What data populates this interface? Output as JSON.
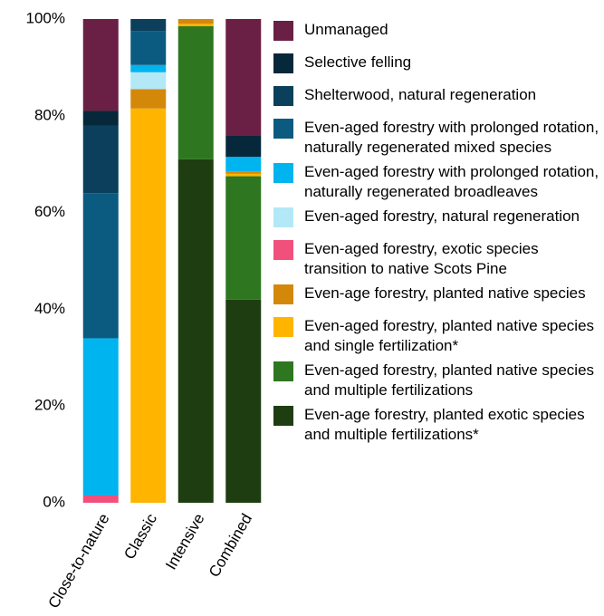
{
  "chart_data": {
    "type": "stacked-bar",
    "categories": [
      "Close-to-nature",
      "Classic",
      "Intensive",
      "Combined"
    ],
    "ylim": [
      0,
      100
    ],
    "yticks": [
      {
        "value": 0,
        "label": "0%"
      },
      {
        "value": 20,
        "label": "20%"
      },
      {
        "value": 40,
        "label": "40%"
      },
      {
        "value": 60,
        "label": "60%"
      },
      {
        "value": 80,
        "label": "80%"
      },
      {
        "value": 100,
        "label": "100%"
      }
    ],
    "grid": false,
    "legend": "right",
    "series": [
      {
        "name": "Even-age forestry, planted exotic species and multiple fertilizations*",
        "color": "#1e3d10",
        "values": [
          0,
          0,
          71,
          42
        ]
      },
      {
        "name": "Even-aged forestry, planted native species and multiple fertilizations",
        "color": "#2e7720",
        "values": [
          0,
          0,
          27.5,
          25.5
        ]
      },
      {
        "name": "Even-aged forestry, planted native species and single fertilization*",
        "color": "#ffb400",
        "values": [
          0,
          81.5,
          0.5,
          0.5
        ]
      },
      {
        "name": "Even-age forestry, planted native species",
        "color": "#d4880a",
        "values": [
          0,
          4,
          1,
          0.5
        ]
      },
      {
        "name": "Even-aged forestry, exotic species transition to native Scots Pine",
        "color": "#f2507c",
        "values": [
          1.5,
          0,
          0,
          0
        ]
      },
      {
        "name": "Even-aged forestry, natural regeneration",
        "color": "#b3e8f7",
        "values": [
          0,
          3.5,
          0,
          0
        ]
      },
      {
        "name": "Even-aged forestry with prolonged rotation, naturally regenerated broadleaves",
        "color": "#00b4ef",
        "values": [
          32.5,
          1.5,
          0,
          3
        ]
      },
      {
        "name": "Even-aged forestry with prolonged rotation, naturally regenerated mixed species",
        "color": "#0b5a80",
        "values": [
          30,
          7,
          0,
          0
        ]
      },
      {
        "name": "Shelterwood, natural regeneration",
        "color": "#0b3f5c",
        "values": [
          14,
          2.5,
          0,
          0
        ]
      },
      {
        "name": "Selective felling",
        "color": "#06283a",
        "values": [
          3,
          0,
          0,
          4.5
        ]
      },
      {
        "name": "Unmanaged",
        "color": "#6a1f44",
        "values": [
          19,
          0,
          0,
          24
        ]
      }
    ]
  }
}
